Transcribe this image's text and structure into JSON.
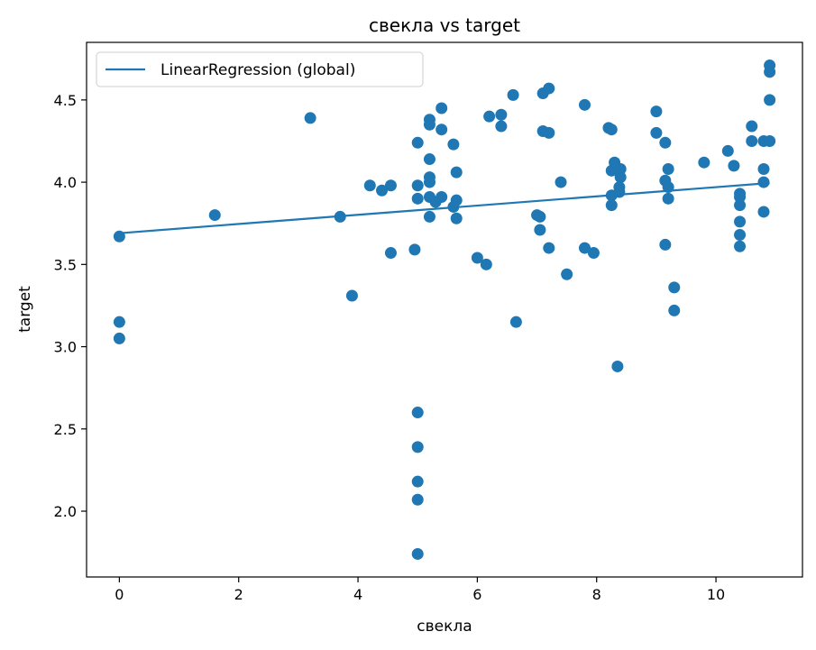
{
  "chart_data": {
    "type": "scatter",
    "title": "свекла vs target",
    "xlabel": "свекла",
    "ylabel": "target",
    "xlim": [
      -0.55,
      11.45
    ],
    "ylim": [
      1.6,
      4.85
    ],
    "xticks": [
      0,
      2,
      4,
      6,
      8,
      10
    ],
    "yticks": [
      2.0,
      2.5,
      3.0,
      3.5,
      4.0,
      4.5
    ],
    "xtick_labels": [
      "0",
      "2",
      "4",
      "6",
      "8",
      "10"
    ],
    "ytick_labels": [
      "2.0",
      "2.5",
      "3.0",
      "3.5",
      "4.0",
      "4.5"
    ],
    "grid": false,
    "legend": {
      "placement": "upper-left",
      "entries": [
        "LinearRegression (global)"
      ]
    },
    "series": [
      {
        "kind": "scatter",
        "color": "#1f77b4",
        "points": [
          [
            0.0,
            3.67
          ],
          [
            0.0,
            3.15
          ],
          [
            0.0,
            3.05
          ],
          [
            1.6,
            3.8
          ],
          [
            3.2,
            4.39
          ],
          [
            3.7,
            3.79
          ],
          [
            3.9,
            3.31
          ],
          [
            4.2,
            3.98
          ],
          [
            4.4,
            3.95
          ],
          [
            4.55,
            3.98
          ],
          [
            4.55,
            3.57
          ],
          [
            4.95,
            3.59
          ],
          [
            5.0,
            4.24
          ],
          [
            5.0,
            3.98
          ],
          [
            5.0,
            3.9
          ],
          [
            5.0,
            2.6
          ],
          [
            5.0,
            2.39
          ],
          [
            5.0,
            2.18
          ],
          [
            5.0,
            2.07
          ],
          [
            5.0,
            1.74
          ],
          [
            5.2,
            4.38
          ],
          [
            5.2,
            4.35
          ],
          [
            5.2,
            4.14
          ],
          [
            5.2,
            4.03
          ],
          [
            5.2,
            4.0
          ],
          [
            5.2,
            3.91
          ],
          [
            5.2,
            3.79
          ],
          [
            5.3,
            3.88
          ],
          [
            5.4,
            4.45
          ],
          [
            5.4,
            4.32
          ],
          [
            5.4,
            3.91
          ],
          [
            5.6,
            4.23
          ],
          [
            5.6,
            3.85
          ],
          [
            5.65,
            4.06
          ],
          [
            5.65,
            3.89
          ],
          [
            5.65,
            3.78
          ],
          [
            6.0,
            3.54
          ],
          [
            6.15,
            3.5
          ],
          [
            6.2,
            4.4
          ],
          [
            6.4,
            4.41
          ],
          [
            6.4,
            4.34
          ],
          [
            6.6,
            4.53
          ],
          [
            6.65,
            3.15
          ],
          [
            7.0,
            3.8
          ],
          [
            7.05,
            3.79
          ],
          [
            7.05,
            3.71
          ],
          [
            7.1,
            4.54
          ],
          [
            7.1,
            4.31
          ],
          [
            7.2,
            4.57
          ],
          [
            7.2,
            4.3
          ],
          [
            7.2,
            3.6
          ],
          [
            7.4,
            4.0
          ],
          [
            7.5,
            3.44
          ],
          [
            7.8,
            4.47
          ],
          [
            7.8,
            3.6
          ],
          [
            7.95,
            3.57
          ],
          [
            8.2,
            4.33
          ],
          [
            8.25,
            4.32
          ],
          [
            8.25,
            4.07
          ],
          [
            8.25,
            3.92
          ],
          [
            8.25,
            3.86
          ],
          [
            8.3,
            4.12
          ],
          [
            8.35,
            2.88
          ],
          [
            8.4,
            4.08
          ],
          [
            8.4,
            4.03
          ],
          [
            8.38,
            3.97
          ],
          [
            8.38,
            3.94
          ],
          [
            9.0,
            4.43
          ],
          [
            9.0,
            4.3
          ],
          [
            9.15,
            4.24
          ],
          [
            9.15,
            4.01
          ],
          [
            9.15,
            3.62
          ],
          [
            9.2,
            4.08
          ],
          [
            9.2,
            3.97
          ],
          [
            9.2,
            3.9
          ],
          [
            9.3,
            3.36
          ],
          [
            9.3,
            3.22
          ],
          [
            9.8,
            4.12
          ],
          [
            10.2,
            4.19
          ],
          [
            10.3,
            4.1
          ],
          [
            10.4,
            3.93
          ],
          [
            10.4,
            3.91
          ],
          [
            10.4,
            3.86
          ],
          [
            10.4,
            3.76
          ],
          [
            10.4,
            3.68
          ],
          [
            10.4,
            3.61
          ],
          [
            10.6,
            4.34
          ],
          [
            10.6,
            4.25
          ],
          [
            10.8,
            4.25
          ],
          [
            10.8,
            4.08
          ],
          [
            10.8,
            4.0
          ],
          [
            10.8,
            3.82
          ],
          [
            10.9,
            4.71
          ],
          [
            10.9,
            4.67
          ],
          [
            10.9,
            4.5
          ],
          [
            10.9,
            4.25
          ]
        ]
      },
      {
        "kind": "line",
        "name": "LinearRegression (global)",
        "color": "#1f77b4",
        "x": [
          0.0,
          10.9
        ],
        "y": [
          3.69,
          3.995
        ]
      }
    ]
  }
}
